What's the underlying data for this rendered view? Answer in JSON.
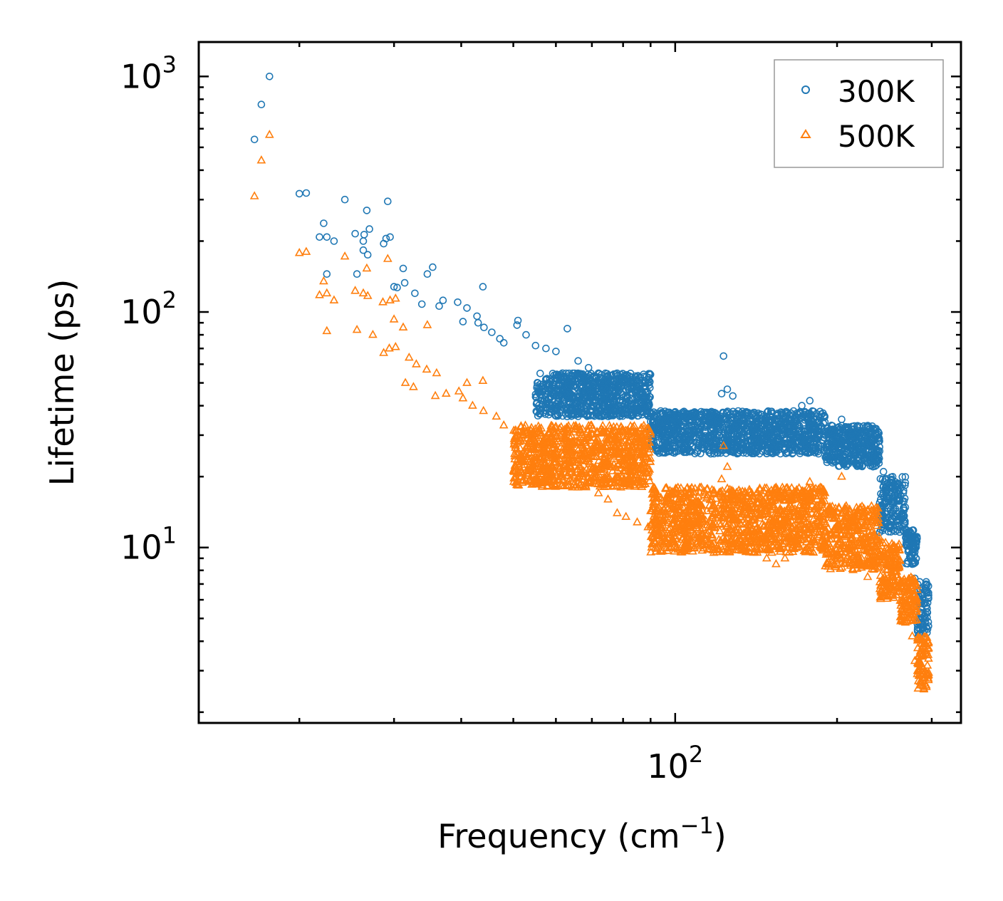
{
  "chart_data": {
    "type": "scatter",
    "xscale": "log",
    "yscale": "log",
    "xlabel": "Frequency (cm",
    "xlabel_sup": "−1",
    "xlabel_tail": ")",
    "ylabel": "Lifetime (ps)",
    "xlim": [
      13,
      340
    ],
    "ylim": [
      1.8,
      1400
    ],
    "x_ticks": [
      {
        "value": 100,
        "base": "10",
        "exp": "2"
      }
    ],
    "y_ticks": [
      {
        "value": 10,
        "base": "10",
        "exp": "1"
      },
      {
        "value": 100,
        "base": "10",
        "exp": "2"
      },
      {
        "value": 1000,
        "base": "10",
        "exp": "3"
      }
    ],
    "legend": {
      "position": "top-right"
    },
    "series": [
      {
        "name": "300K",
        "marker": "circle",
        "color": "#1f77b4",
        "points": [
          [
            17.6,
            1000
          ],
          [
            17.0,
            760
          ],
          [
            16.5,
            540
          ],
          [
            20.0,
            318
          ],
          [
            20.6,
            320
          ],
          [
            24.3,
            300
          ],
          [
            26.7,
            270
          ],
          [
            29.2,
            295
          ],
          [
            22.2,
            238
          ],
          [
            22.5,
            208
          ],
          [
            21.8,
            208
          ],
          [
            25.4,
            215
          ],
          [
            26.4,
            213
          ],
          [
            26.3,
            200
          ],
          [
            27.0,
            225
          ],
          [
            28.7,
            195
          ],
          [
            29.0,
            205
          ],
          [
            29.5,
            208
          ],
          [
            23.2,
            200
          ],
          [
            26.3,
            183
          ],
          [
            26.8,
            175
          ],
          [
            22.5,
            145
          ],
          [
            25.6,
            145
          ],
          [
            31.2,
            153
          ],
          [
            34.6,
            145
          ],
          [
            35.4,
            155
          ],
          [
            30.0,
            128
          ],
          [
            30.4,
            127
          ],
          [
            31.4,
            133
          ],
          [
            32.8,
            120
          ],
          [
            33.8,
            108
          ],
          [
            36.4,
            106
          ],
          [
            37.0,
            112
          ],
          [
            39.4,
            110
          ],
          [
            41.0,
            104
          ],
          [
            42.8,
            96
          ],
          [
            40.3,
            91
          ],
          [
            43.0,
            90
          ],
          [
            44.1,
            86
          ],
          [
            45.6,
            82
          ],
          [
            47.2,
            77
          ],
          [
            48.0,
            74
          ],
          [
            43.9,
            128
          ],
          [
            50.8,
            88
          ],
          [
            51.0,
            92
          ],
          [
            52.8,
            80
          ],
          [
            55.0,
            72
          ],
          [
            57.5,
            70
          ],
          [
            60.0,
            68
          ],
          [
            63.0,
            85
          ],
          [
            66.0,
            62
          ],
          [
            69.0,
            58
          ],
          [
            72.0,
            55
          ],
          [
            75.0,
            51
          ],
          [
            78.0,
            49
          ],
          [
            81.0,
            47
          ],
          [
            85.0,
            44
          ],
          [
            89.0,
            41
          ],
          [
            94.0,
            38
          ],
          [
            99.0,
            36
          ],
          [
            104.0,
            34
          ],
          [
            109.0,
            33
          ],
          [
            114.0,
            33
          ],
          [
            118.0,
            36
          ],
          [
            122.0,
            45
          ],
          [
            123.0,
            65
          ],
          [
            125.0,
            47
          ],
          [
            128.0,
            44
          ],
          [
            131.0,
            38
          ],
          [
            136.0,
            36
          ],
          [
            142.0,
            34
          ],
          [
            148.0,
            33
          ],
          [
            154.0,
            32
          ],
          [
            160.0,
            33
          ],
          [
            166.0,
            38
          ],
          [
            172.0,
            40
          ],
          [
            178.0,
            42
          ],
          [
            184.0,
            34
          ],
          [
            190.0,
            31
          ],
          [
            196.0,
            29
          ],
          [
            204.0,
            35
          ],
          [
            208.0,
            32
          ],
          [
            214.0,
            30
          ],
          [
            220.0,
            28
          ],
          [
            228.0,
            27
          ],
          [
            236.0,
            24
          ],
          [
            244.0,
            21
          ],
          [
            252.0,
            18
          ],
          [
            258.0,
            16
          ],
          [
            264.0,
            14
          ],
          [
            268.0,
            12
          ],
          [
            272.0,
            10.5
          ],
          [
            276.0,
            8.5
          ],
          [
            279.0,
            7.4
          ],
          [
            282.0,
            6.5
          ],
          [
            286.0,
            5.8
          ],
          [
            290.0,
            5.1
          ],
          [
            293.0,
            4.6
          ]
        ],
        "bands": [
          {
            "x": [
              55,
              90
            ],
            "y": [
              36,
              55
            ]
          },
          {
            "x": [
              90,
              190
            ],
            "y": [
              25,
              38
            ]
          },
          {
            "x": [
              190,
              240
            ],
            "y": [
              22,
              33
            ]
          },
          {
            "x": [
              240,
              268
            ],
            "y": [
              11.5,
              20
            ]
          },
          {
            "x": [
              268,
              282
            ],
            "y": [
              8.5,
              12
            ]
          },
          {
            "x": [
              282,
              296
            ],
            "y": [
              4.2,
              7.3
            ]
          }
        ]
      },
      {
        "name": "500K",
        "marker": "triangle",
        "color": "#ff7f0e",
        "points": [
          [
            17.6,
            565
          ],
          [
            17.0,
            440
          ],
          [
            16.5,
            310
          ],
          [
            20.0,
            178
          ],
          [
            20.6,
            180
          ],
          [
            24.3,
            172
          ],
          [
            26.7,
            153
          ],
          [
            29.2,
            168
          ],
          [
            22.2,
            135
          ],
          [
            22.5,
            120
          ],
          [
            21.8,
            118
          ],
          [
            25.4,
            123
          ],
          [
            23.2,
            112
          ],
          [
            26.3,
            120
          ],
          [
            26.8,
            117
          ],
          [
            28.6,
            110
          ],
          [
            29.5,
            112
          ],
          [
            30.2,
            114
          ],
          [
            22.5,
            83
          ],
          [
            25.6,
            84
          ],
          [
            27.4,
            80
          ],
          [
            30.0,
            93
          ],
          [
            31.2,
            86
          ],
          [
            34.6,
            88
          ],
          [
            28.7,
            67
          ],
          [
            29.4,
            70
          ],
          [
            30.2,
            71
          ],
          [
            32.0,
            64
          ],
          [
            33.0,
            60
          ],
          [
            34.5,
            57
          ],
          [
            36.0,
            55
          ],
          [
            31.5,
            50
          ],
          [
            32.6,
            48
          ],
          [
            35.8,
            44
          ],
          [
            37.5,
            45
          ],
          [
            39.6,
            46
          ],
          [
            41.0,
            50
          ],
          [
            43.9,
            51
          ],
          [
            40.3,
            43
          ],
          [
            42.0,
            40
          ],
          [
            44.0,
            38
          ],
          [
            46.5,
            36
          ],
          [
            48.0,
            33
          ],
          [
            51.0,
            30
          ],
          [
            54.0,
            28
          ],
          [
            57.0,
            25
          ],
          [
            60.0,
            23
          ],
          [
            63.0,
            22
          ],
          [
            66.0,
            20
          ],
          [
            69.0,
            19
          ],
          [
            72.0,
            17
          ],
          [
            75.0,
            16
          ],
          [
            78.0,
            14
          ],
          [
            81.0,
            13.5
          ],
          [
            85.0,
            12.8
          ],
          [
            89.0,
            12.2
          ],
          [
            94.0,
            11.8
          ],
          [
            99.0,
            11.5
          ],
          [
            104.0,
            12.0
          ],
          [
            109.0,
            11.0
          ],
          [
            114.0,
            10.2
          ],
          [
            118.0,
            9.5
          ],
          [
            122.0,
            19.5
          ],
          [
            123.0,
            27.0
          ],
          [
            125.0,
            22.0
          ],
          [
            128.0,
            16.0
          ],
          [
            131.0,
            13.0
          ],
          [
            136.0,
            10.5
          ],
          [
            142.0,
            9.8
          ],
          [
            148.0,
            9.0
          ],
          [
            154.0,
            8.5
          ],
          [
            160.0,
            9.0
          ],
          [
            166.0,
            11.0
          ],
          [
            172.0,
            14.0
          ],
          [
            178.0,
            19.0
          ],
          [
            184.0,
            13.0
          ],
          [
            190.0,
            10.5
          ],
          [
            196.0,
            9.5
          ],
          [
            204.0,
            20.0
          ],
          [
            208.0,
            15.0
          ],
          [
            214.0,
            11.0
          ],
          [
            220.0,
            8.5
          ],
          [
            228.0,
            7.5
          ],
          [
            236.0,
            8.5
          ],
          [
            244.0,
            9.5
          ],
          [
            252.0,
            7.5
          ],
          [
            258.0,
            6.5
          ],
          [
            264.0,
            5.5
          ],
          [
            268.0,
            4.8
          ],
          [
            272.0,
            5.3
          ],
          [
            276.0,
            4.2
          ],
          [
            279.0,
            3.3
          ],
          [
            282.0,
            2.9
          ],
          [
            286.0,
            2.6
          ],
          [
            290.0,
            2.5
          ],
          [
            293.0,
            2.6
          ]
        ],
        "bands": [
          {
            "x": [
              50,
              90
            ],
            "y": [
              18,
              33
            ]
          },
          {
            "x": [
              90,
              190
            ],
            "y": [
              9.5,
              18
            ]
          },
          {
            "x": [
              190,
              240
            ],
            "y": [
              8,
              15
            ]
          },
          {
            "x": [
              240,
              262
            ],
            "y": [
              6,
              10.5
            ]
          },
          {
            "x": [
              262,
              282
            ],
            "y": [
              4.8,
              7.5
            ]
          },
          {
            "x": [
              282,
              296
            ],
            "y": [
              2.5,
              4.2
            ]
          }
        ]
      }
    ]
  }
}
